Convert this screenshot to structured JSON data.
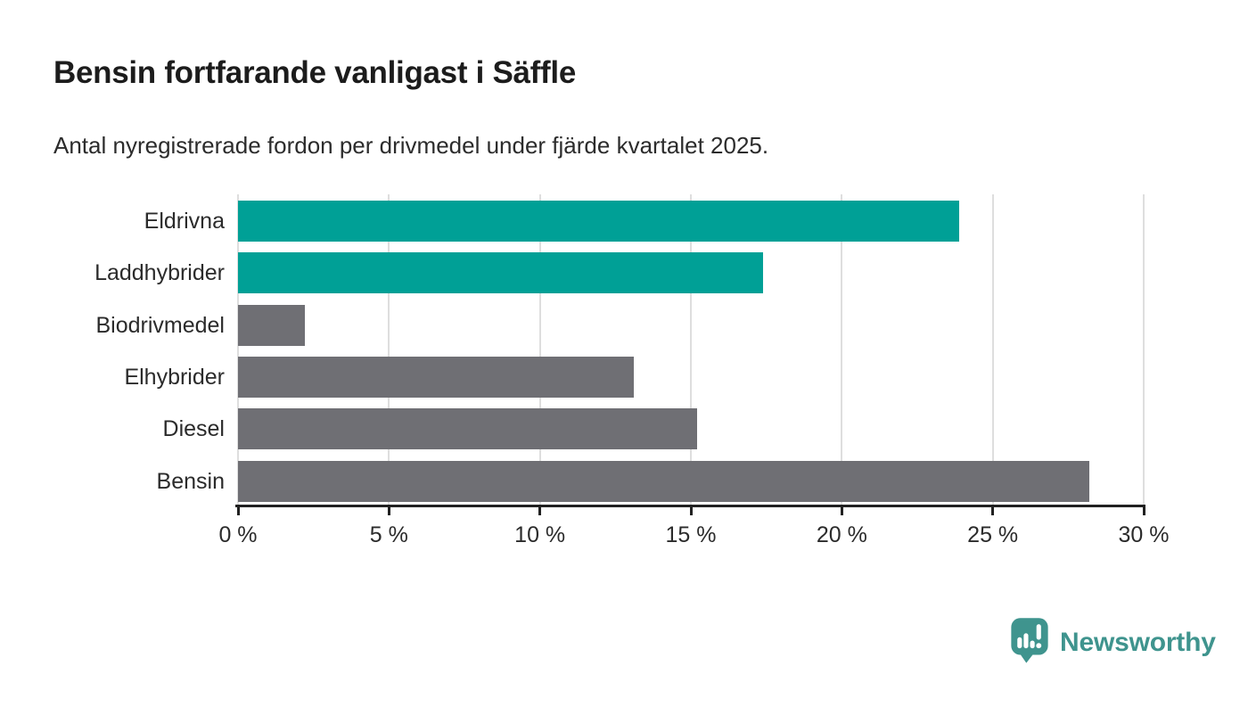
{
  "header": {
    "title": "Bensin fortfarande vanligast i Säffle",
    "subtitle": "Antal nyregistrerade fordon per drivmedel under fjärde kvartalet 2025."
  },
  "chart_data": {
    "type": "bar",
    "orientation": "horizontal",
    "title": "Bensin fortfarande vanligast i Säffle",
    "subtitle": "Antal nyregistrerade fordon per drivmedel under fjärde kvartalet 2025.",
    "categories": [
      "Eldrivna",
      "Laddhybrider",
      "Biodrivmedel",
      "Elhybrider",
      "Diesel",
      "Bensin"
    ],
    "values": [
      23.9,
      17.4,
      2.2,
      13.1,
      15.2,
      28.2
    ],
    "unit": "%",
    "bar_colors": [
      "#00a096",
      "#00a096",
      "#6f6f74",
      "#6f6f74",
      "#6f6f74",
      "#6f6f74"
    ],
    "highlight_color": "#00a096",
    "default_color": "#6f6f74",
    "xlim": [
      0,
      30
    ],
    "x_ticks": [
      0,
      5,
      10,
      15,
      20,
      25,
      30
    ],
    "x_tick_labels": [
      "0 %",
      "5 %",
      "10 %",
      "15 %",
      "20 %",
      "25 %",
      "30 %"
    ],
    "xlabel": "",
    "ylabel": "",
    "grid": "vertical",
    "legend": "none"
  },
  "footer": {
    "brand_name": "Newsworthy",
    "brand_color": "#3f948e",
    "logo_icon": "newsworthy-speech-bubble-chart-icon"
  }
}
